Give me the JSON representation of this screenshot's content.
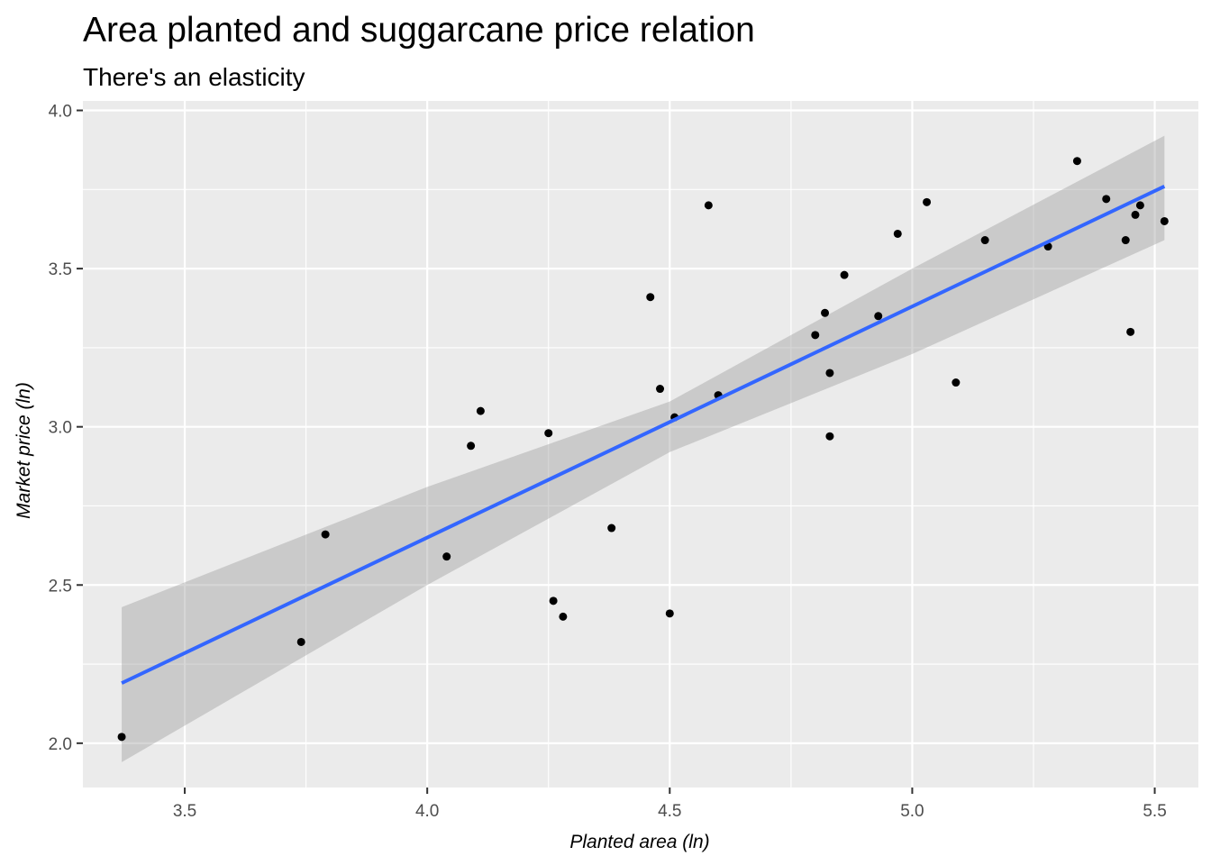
{
  "chart_data": {
    "type": "scatter",
    "title": "Area planted and suggarcane price relation",
    "subtitle": "There's an elasticity",
    "xlabel": "Planted area (ln)",
    "ylabel": "Market price (ln)",
    "xlim": [
      3.29,
      5.59
    ],
    "ylim": [
      1.86,
      4.03
    ],
    "x_ticks": [
      3.5,
      4.0,
      4.5,
      5.0,
      5.5
    ],
    "x_tick_labels": [
      "3.5",
      "4.0",
      "4.5",
      "5.0",
      "5.5"
    ],
    "y_ticks": [
      2.0,
      2.5,
      3.0,
      3.5,
      4.0
    ],
    "y_tick_labels": [
      "2.0",
      "2.5",
      "3.0",
      "3.5",
      "4.0"
    ],
    "grid": true,
    "colors": {
      "panel": "#ebebeb",
      "grid": "#ffffff",
      "points": "#000000",
      "fit_line": "#3366ff",
      "ribbon": "#999999"
    },
    "points": [
      {
        "x": 3.37,
        "y": 2.02
      },
      {
        "x": 3.74,
        "y": 2.32
      },
      {
        "x": 3.79,
        "y": 2.66
      },
      {
        "x": 4.04,
        "y": 2.59
      },
      {
        "x": 4.09,
        "y": 2.94
      },
      {
        "x": 4.11,
        "y": 3.05
      },
      {
        "x": 4.25,
        "y": 2.98
      },
      {
        "x": 4.26,
        "y": 2.45
      },
      {
        "x": 4.28,
        "y": 2.4
      },
      {
        "x": 4.38,
        "y": 2.68
      },
      {
        "x": 4.46,
        "y": 3.41
      },
      {
        "x": 4.48,
        "y": 3.12
      },
      {
        "x": 4.5,
        "y": 2.41
      },
      {
        "x": 4.51,
        "y": 3.03
      },
      {
        "x": 4.58,
        "y": 3.7
      },
      {
        "x": 4.6,
        "y": 3.1
      },
      {
        "x": 4.8,
        "y": 3.29
      },
      {
        "x": 4.82,
        "y": 3.36
      },
      {
        "x": 4.83,
        "y": 3.17
      },
      {
        "x": 4.83,
        "y": 2.97
      },
      {
        "x": 4.86,
        "y": 3.48
      },
      {
        "x": 4.93,
        "y": 3.35
      },
      {
        "x": 4.97,
        "y": 3.61
      },
      {
        "x": 5.03,
        "y": 3.71
      },
      {
        "x": 5.09,
        "y": 3.14
      },
      {
        "x": 5.15,
        "y": 3.59
      },
      {
        "x": 5.28,
        "y": 3.57
      },
      {
        "x": 5.34,
        "y": 3.84
      },
      {
        "x": 5.4,
        "y": 3.72
      },
      {
        "x": 5.44,
        "y": 3.59
      },
      {
        "x": 5.45,
        "y": 3.3
      },
      {
        "x": 5.46,
        "y": 3.67
      },
      {
        "x": 5.47,
        "y": 3.7
      },
      {
        "x": 5.52,
        "y": 3.65
      }
    ],
    "fit_line": [
      {
        "x": 3.37,
        "y": 2.19
      },
      {
        "x": 5.52,
        "y": 3.76
      }
    ],
    "confidence_band": [
      {
        "x": 3.37,
        "lower": 1.94,
        "upper": 2.43
      },
      {
        "x": 4.0,
        "lower": 2.5,
        "upper": 2.81
      },
      {
        "x": 4.5,
        "lower": 2.92,
        "upper": 3.08
      },
      {
        "x": 5.0,
        "lower": 3.23,
        "upper": 3.5
      },
      {
        "x": 5.52,
        "lower": 3.59,
        "upper": 3.92
      }
    ]
  }
}
